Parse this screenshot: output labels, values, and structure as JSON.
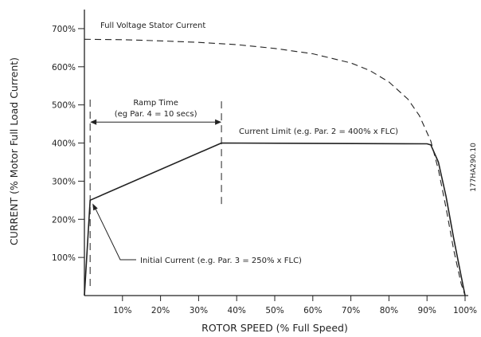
{
  "chart_data": {
    "type": "line",
    "xlabel": "ROTOR SPEED (% Full Speed)",
    "ylabel": "CURRENT (% Motor Full Load Current)",
    "xlim": [
      0,
      100
    ],
    "ylim": [
      0,
      750
    ],
    "grid": false,
    "x_ticks": [
      10,
      20,
      30,
      40,
      50,
      60,
      70,
      80,
      90,
      100
    ],
    "x_tick_labels": [
      "10%",
      "20%",
      "30%",
      "40%",
      "50%",
      "60%",
      "70%",
      "80%",
      "90%",
      "100%"
    ],
    "y_ticks": [
      100,
      200,
      300,
      400,
      500,
      600,
      700
    ],
    "y_tick_labels": [
      "100%",
      "200%",
      "300%",
      "400%",
      "500%",
      "600%",
      "700%"
    ],
    "series": [
      {
        "name": "Full Voltage Stator Current",
        "style": "dashed",
        "x": [
          0,
          10,
          20,
          30,
          40,
          50,
          60,
          70,
          75,
          80,
          85,
          88,
          91,
          93,
          95,
          97,
          99,
          100
        ],
        "y": [
          672,
          671,
          668,
          664,
          658,
          648,
          634,
          610,
          590,
          560,
          515,
          472,
          405,
          330,
          230,
          120,
          30,
          0
        ]
      },
      {
        "name": "Current Limit",
        "style": "solid",
        "x": [
          0,
          1.5,
          36,
          90,
          91,
          93,
          95,
          97,
          99,
          100
        ],
        "y": [
          0,
          250,
          400,
          398,
          395,
          350,
          260,
          150,
          50,
          0
        ]
      }
    ],
    "annotations": {
      "full_voltage": "Full Voltage Stator Current",
      "current_limit": "Current Limit (e.g. Par. 2 = 400% x FLC)",
      "ramp_time": "Ramp Time",
      "ramp_time_example": "(eg Par. 4 = 10 secs)",
      "initial_current": "Initial Current (e.g. Par. 3 = 250% x FLC)"
    },
    "ramp_interval_x": [
      1.5,
      36
    ],
    "initial_current_point": [
      1.5,
      250
    ]
  },
  "figure_code": "177HA290.10"
}
